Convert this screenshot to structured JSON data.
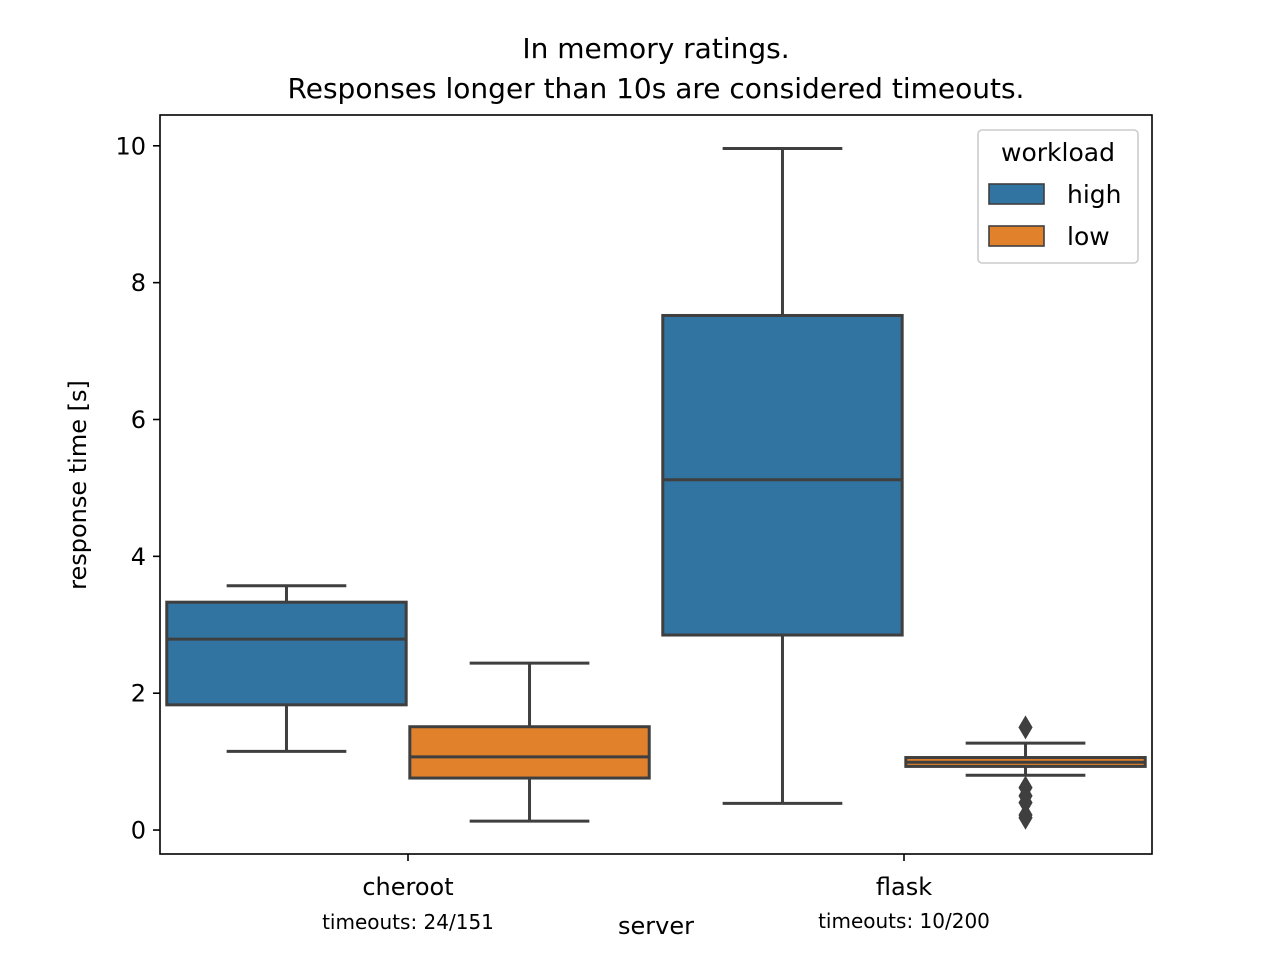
{
  "chart_data": {
    "type": "box",
    "title": [
      "In memory ratings.",
      "Responses longer than 10s are considered timeouts."
    ],
    "xlabel": "server",
    "ylabel": "response time [s]",
    "ylim": [
      -0.35,
      10.45
    ],
    "yticks": [
      "0",
      "2",
      "4",
      "6",
      "8",
      "10"
    ],
    "categories": [
      "cheroot",
      "flask"
    ],
    "category_annotations": [
      "timeouts: 24/151",
      "timeouts: 10/200"
    ],
    "legend": {
      "title": "workload",
      "placement": "top-right",
      "entries": [
        "high",
        "low"
      ]
    },
    "series": [
      {
        "name": "high",
        "color": "#3274a1",
        "boxes": [
          {
            "category": "cheroot",
            "whisker_low": 1.15,
            "q1": 1.83,
            "median": 2.79,
            "q3": 3.33,
            "whisker_high": 3.57,
            "outliers": []
          },
          {
            "category": "flask",
            "whisker_low": 0.39,
            "q1": 2.85,
            "median": 5.12,
            "q3": 7.52,
            "whisker_high": 9.96,
            "outliers": []
          }
        ]
      },
      {
        "name": "low",
        "color": "#e1812c",
        "boxes": [
          {
            "category": "cheroot",
            "whisker_low": 0.13,
            "q1": 0.76,
            "median": 1.07,
            "q3": 1.51,
            "whisker_high": 2.44,
            "outliers": []
          },
          {
            "category": "flask",
            "whisker_low": 0.8,
            "q1": 0.93,
            "median": 0.99,
            "q3": 1.06,
            "whisker_high": 1.27,
            "outliers": [
              1.5,
              0.62,
              0.5,
              0.4,
              0.22,
              0.18
            ]
          }
        ]
      }
    ]
  }
}
